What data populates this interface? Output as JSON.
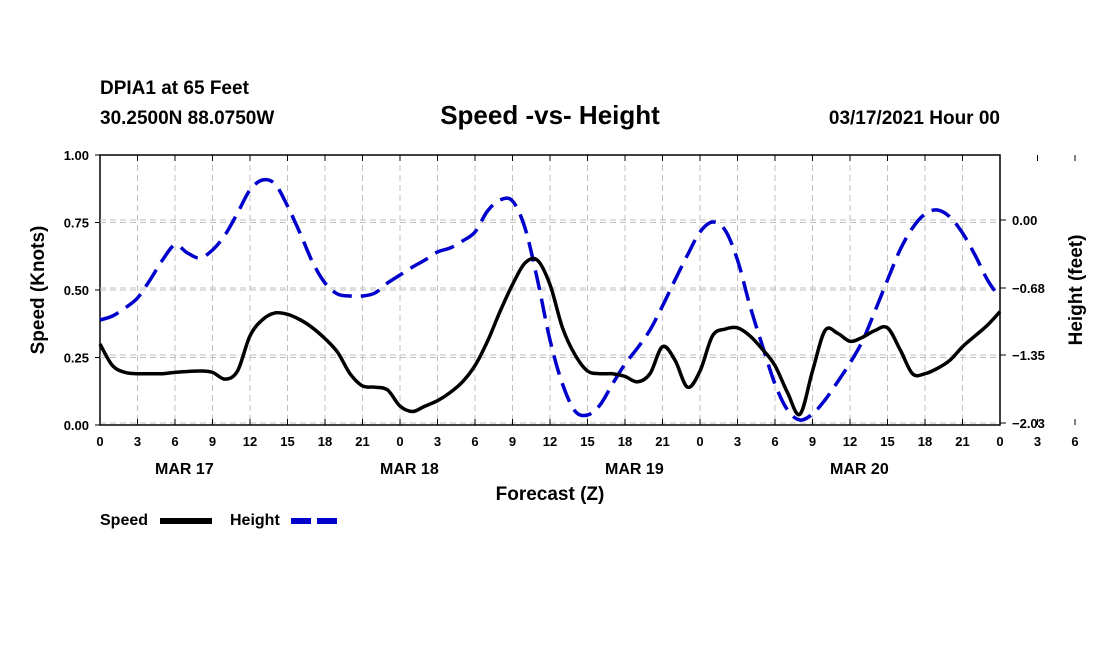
{
  "header": {
    "station": "DPIA1 at 65 Feet",
    "coords": "30.2500N 88.0750W",
    "title": "Speed -vs- Height",
    "run": "03/17/2021 Hour 00"
  },
  "legend": {
    "speed_label": "Speed",
    "height_label": "Height"
  },
  "colors": {
    "speed": "#000000",
    "height": "#0000cc",
    "grid": "#bfbfbf"
  },
  "chart_data": {
    "type": "line",
    "title": "Speed -vs- Height",
    "xlabel": "Forecast (Z)",
    "ylabel": "Speed (Knots)",
    "y2label": "Height (feet)",
    "xlim": [
      0,
      72
    ],
    "ylim": [
      0,
      1
    ],
    "y2lim": [
      -2.05,
      0.65
    ],
    "grid": true,
    "x_tick_labels": [
      "0",
      "3",
      "6",
      "9",
      "12",
      "15",
      "18",
      "21",
      "0",
      "3",
      "6",
      "9",
      "12",
      "15",
      "18",
      "21",
      "0",
      "3",
      "6",
      "9",
      "12",
      "15",
      "18",
      "21",
      "0",
      "3",
      "6",
      "9",
      "12",
      "15",
      "18",
      "21",
      "0"
    ],
    "y_ticks": [
      0,
      0.25,
      0.5,
      0.75,
      1.0
    ],
    "y_tick_labels": [
      "0.00",
      "0.25",
      "0.50",
      "0.75",
      "1.00"
    ],
    "y2_ticks": [
      -2.03,
      -1.35,
      -0.68,
      0.0
    ],
    "y2_tick_labels": [
      "−2.03",
      "−1.35",
      "−0.68",
      "0.00"
    ],
    "day_labels": [
      {
        "label": "MAR 17",
        "center_hour": 6.75
      },
      {
        "label": "MAR 18",
        "center_hour": 24.75
      },
      {
        "label": "MAR 19",
        "center_hour": 42.75
      },
      {
        "label": "MAR 20",
        "center_hour": 60.75
      }
    ],
    "series": [
      {
        "name": "Speed",
        "axis": "left",
        "dash": "solid",
        "x": [
          0,
          1,
          2,
          3,
          4,
          5,
          6,
          7,
          8,
          9,
          10,
          11,
          12,
          13,
          14,
          15,
          16,
          17,
          18,
          19,
          20,
          21,
          22,
          23,
          24,
          25,
          26,
          27,
          28,
          29,
          30,
          31,
          32,
          33,
          34,
          35,
          36,
          37,
          38,
          39,
          40,
          41,
          42,
          43,
          44,
          45,
          46,
          47,
          48,
          49,
          50,
          51,
          52,
          53,
          54,
          55,
          56,
          57,
          58,
          59,
          60,
          61,
          62,
          63,
          64,
          65,
          66,
          67,
          68,
          69,
          70,
          71,
          72
        ],
        "values": [
          0.3,
          0.22,
          0.195,
          0.19,
          0.19,
          0.19,
          0.195,
          0.198,
          0.2,
          0.195,
          0.17,
          0.2,
          0.33,
          0.39,
          0.415,
          0.41,
          0.39,
          0.36,
          0.32,
          0.27,
          0.19,
          0.145,
          0.14,
          0.13,
          0.07,
          0.05,
          0.07,
          0.09,
          0.12,
          0.16,
          0.22,
          0.31,
          0.42,
          0.52,
          0.6,
          0.61,
          0.52,
          0.36,
          0.26,
          0.2,
          0.19,
          0.19,
          0.18,
          0.16,
          0.19,
          0.29,
          0.24,
          0.14,
          0.2,
          0.33,
          0.355,
          0.36,
          0.33,
          0.28,
          0.22,
          0.12,
          0.04,
          0.2,
          0.35,
          0.34,
          0.31,
          0.325,
          0.35,
          0.36,
          0.28,
          0.19,
          0.19,
          0.21,
          0.24,
          0.29,
          0.33,
          0.37,
          0.42
        ]
      },
      {
        "name": "Height",
        "axis": "right",
        "dash": "dashed",
        "x": [
          0,
          1,
          2,
          3,
          4,
          5,
          6,
          7,
          8,
          9,
          10,
          11,
          12,
          13,
          14,
          15,
          16,
          17,
          18,
          19,
          20,
          21,
          22,
          23,
          24,
          25,
          26,
          27,
          28,
          29,
          30,
          31,
          32,
          33,
          34,
          35,
          36,
          37,
          38,
          39,
          40,
          41,
          42,
          43,
          44,
          45,
          46,
          47,
          48,
          49,
          50,
          51,
          52,
          53,
          54,
          55,
          56,
          57,
          58,
          59,
          60,
          61,
          62,
          63,
          64,
          65,
          66,
          67,
          68,
          69,
          70,
          71,
          72
        ],
        "values": [
          -1.0,
          -0.96,
          -0.88,
          -0.78,
          -0.6,
          -0.4,
          -0.25,
          -0.33,
          -0.38,
          -0.3,
          -0.15,
          0.07,
          0.3,
          0.4,
          0.36,
          0.14,
          -0.13,
          -0.42,
          -0.63,
          -0.74,
          -0.76,
          -0.76,
          -0.73,
          -0.63,
          -0.55,
          -0.47,
          -0.4,
          -0.32,
          -0.28,
          -0.21,
          -0.12,
          0.09,
          0.2,
          0.19,
          -0.08,
          -0.6,
          -1.2,
          -1.64,
          -1.91,
          -1.95,
          -1.85,
          -1.64,
          -1.44,
          -1.28,
          -1.1,
          -0.86,
          -0.6,
          -0.35,
          -0.12,
          -0.02,
          -0.1,
          -0.4,
          -0.86,
          -1.26,
          -1.64,
          -1.9,
          -2.0,
          -1.94,
          -1.8,
          -1.62,
          -1.43,
          -1.21,
          -0.91,
          -0.6,
          -0.3,
          -0.08,
          0.06,
          0.1,
          0.03,
          -0.13,
          -0.35,
          -0.6,
          -0.78
        ]
      }
    ]
  }
}
